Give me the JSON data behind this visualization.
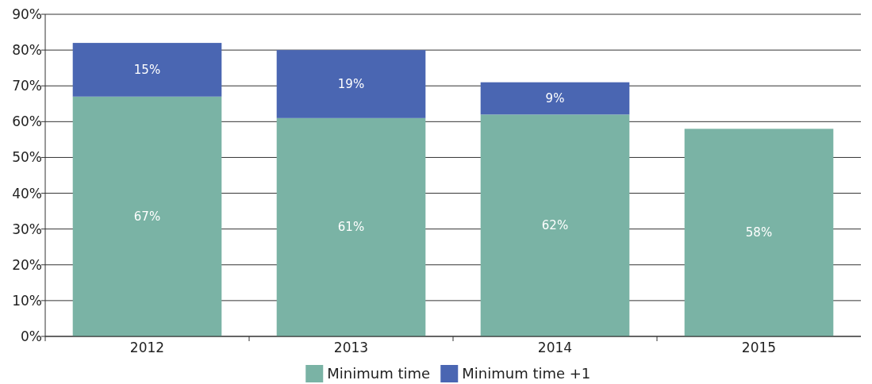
{
  "chart_data": {
    "type": "bar",
    "stacked": true,
    "categories": [
      "2012",
      "2013",
      "2014",
      "2015"
    ],
    "series": [
      {
        "name": "Minimum time",
        "color": "#7ab3a5",
        "values": [
          67,
          61,
          62,
          58
        ],
        "value_labels": [
          "67%",
          "61%",
          "62%",
          "58%"
        ]
      },
      {
        "name": "Minimum time +1",
        "color": "#4a66b2",
        "values": [
          15,
          19,
          9,
          null
        ],
        "value_labels": [
          "15%",
          "19%",
          "9%",
          null
        ]
      }
    ],
    "ylim": [
      0,
      90
    ],
    "yticks": [
      {
        "value": 0,
        "label": "0%"
      },
      {
        "value": 10,
        "label": "10%"
      },
      {
        "value": 20,
        "label": "20%"
      },
      {
        "value": 30,
        "label": "30%"
      },
      {
        "value": 40,
        "label": "40%"
      },
      {
        "value": 50,
        "label": "50%"
      },
      {
        "value": 60,
        "label": "60%"
      },
      {
        "value": 70,
        "label": "70%"
      },
      {
        "value": 80,
        "label": "80%"
      },
      {
        "value": 90,
        "label": "90%"
      }
    ],
    "grid": "y",
    "legend": "bottom"
  }
}
